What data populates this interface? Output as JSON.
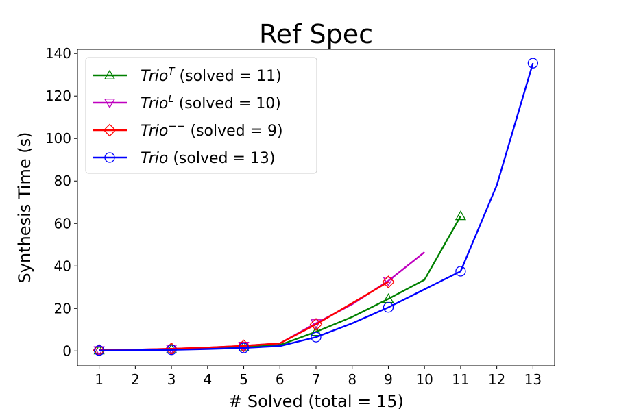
{
  "chart_data": {
    "type": "line",
    "title": "Ref Spec",
    "xlabel": "# Solved (total = 15)",
    "ylabel": "Synthesis Time (s)",
    "xlim": [
      0.4,
      13.6
    ],
    "ylim": [
      -7,
      142
    ],
    "xticks": [
      1,
      2,
      3,
      4,
      5,
      6,
      7,
      8,
      9,
      10,
      11,
      12,
      13
    ],
    "yticks": [
      0,
      20,
      40,
      60,
      80,
      100,
      120,
      140
    ],
    "grid": false,
    "legend_position": "top-left",
    "series": [
      {
        "name": "Trio^T (solved = 11)",
        "legend_name": "Trio",
        "legend_sup": "T",
        "legend_rest": " (solved = 11)",
        "color": "#008000",
        "marker": "triangle-up",
        "x": [
          1,
          2,
          3,
          4,
          5,
          6,
          7,
          8,
          9,
          10,
          11
        ],
        "y": [
          0.3,
          0.5,
          0.8,
          1.3,
          1.8,
          2.8,
          9.0,
          16.0,
          24.5,
          33.5,
          63.5
        ],
        "marker_x": [
          1,
          3,
          5,
          7,
          9,
          11
        ]
      },
      {
        "name": "Trio^L (solved = 10)",
        "legend_name": "Trio",
        "legend_sup": "L",
        "legend_rest": " (solved = 10)",
        "color": "#bf00bf",
        "marker": "triangle-down",
        "x": [
          1,
          2,
          3,
          4,
          5,
          6,
          7,
          8,
          9,
          10
        ],
        "y": [
          0.3,
          0.6,
          1.0,
          1.6,
          2.4,
          3.6,
          13.0,
          22.0,
          33.0,
          46.5
        ],
        "marker_x": [
          1,
          3,
          5,
          7,
          9
        ]
      },
      {
        "name": "Trio^-- (solved = 9)",
        "legend_name": "Trio",
        "legend_sup": "−−",
        "legend_rest": " (solved = 9)",
        "color": "#ff0000",
        "marker": "diamond",
        "x": [
          1,
          2,
          3,
          4,
          5,
          6,
          7,
          8,
          9
        ],
        "y": [
          0.3,
          0.6,
          1.0,
          1.6,
          2.4,
          3.6,
          12.5,
          22.5,
          32.5
        ],
        "marker_x": [
          1,
          3,
          5,
          7,
          9
        ]
      },
      {
        "name": "Trio (solved = 13)",
        "legend_name": "Trio",
        "legend_sup": "",
        "legend_rest": " (solved = 13)",
        "color": "#0000ff",
        "marker": "circle",
        "x": [
          1,
          2,
          3,
          4,
          5,
          6,
          7,
          8,
          9,
          10,
          11,
          12,
          13
        ],
        "y": [
          0.2,
          0.3,
          0.5,
          0.9,
          1.4,
          2.3,
          6.5,
          13.0,
          20.5,
          29.0,
          37.5,
          78.0,
          135.5
        ],
        "marker_x": [
          1,
          3,
          5,
          7,
          9,
          11,
          13
        ]
      }
    ]
  }
}
